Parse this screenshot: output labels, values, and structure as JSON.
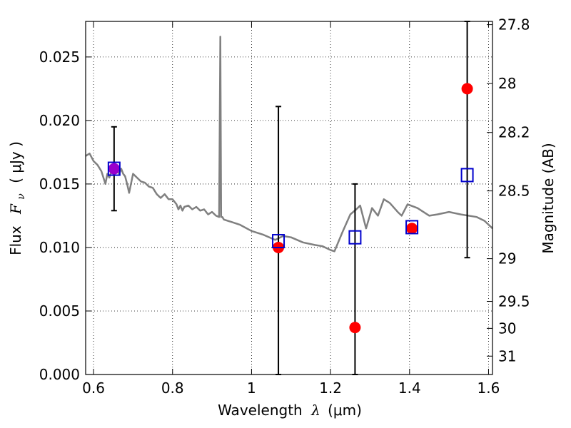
{
  "chart_data": {
    "type": "scatter",
    "xlabel_prefix": "Wavelength",
    "xlabel_symbol": "λ",
    "xlabel_unit": "(μm)",
    "ylabel_prefix": "Flux",
    "ylabel_symbol": "F",
    "ylabel_sub": "ν",
    "ylabel_unit": "( μJy )",
    "y2label": "Magnitude (AB)",
    "xlim": [
      0.58,
      1.61
    ],
    "ylim": [
      0.0,
      0.0278
    ],
    "grid": true,
    "x_ticks": [
      0.6,
      0.8,
      1.0,
      1.2,
      1.4,
      1.6
    ],
    "x_tick_labels": [
      "0.6",
      "0.8",
      "1",
      "1.2",
      "1.4",
      "1.6"
    ],
    "y_ticks": [
      0.0,
      0.005,
      0.01,
      0.015,
      0.02,
      0.025
    ],
    "y_tick_labels": [
      "0.000",
      "0.005",
      "0.010",
      "0.015",
      "0.020",
      "0.025"
    ],
    "y2_ticks": [
      27.8,
      28,
      28.2,
      28.5,
      29,
      29.5,
      30,
      31
    ],
    "y2_tick_labels": [
      "27.8",
      "28",
      "28.2",
      "28.5",
      "29",
      "29.5",
      "30",
      "31"
    ],
    "colors": {
      "model": "#808080",
      "observed": "#ff0000",
      "model_photometry": "#0000cc",
      "errorbar": "#000000",
      "overlap": "#9900cc"
    },
    "model_spectrum": {
      "x": [
        0.58,
        0.59,
        0.6,
        0.61,
        0.62,
        0.63,
        0.635,
        0.64,
        0.645,
        0.65,
        0.655,
        0.66,
        0.665,
        0.67,
        0.675,
        0.68,
        0.685,
        0.69,
        0.7,
        0.71,
        0.72,
        0.73,
        0.74,
        0.75,
        0.76,
        0.77,
        0.78,
        0.79,
        0.8,
        0.81,
        0.815,
        0.82,
        0.825,
        0.83,
        0.84,
        0.85,
        0.86,
        0.87,
        0.88,
        0.89,
        0.9,
        0.91,
        0.918,
        0.921,
        0.923,
        0.926,
        0.93,
        0.94,
        0.95,
        0.97,
        1.0,
        1.03,
        1.06,
        1.08,
        1.1,
        1.13,
        1.16,
        1.18,
        1.2,
        1.21,
        1.23,
        1.25,
        1.265,
        1.275,
        1.29,
        1.305,
        1.32,
        1.335,
        1.35,
        1.37,
        1.38,
        1.395,
        1.42,
        1.45,
        1.47,
        1.5,
        1.53,
        1.57,
        1.59,
        1.61
      ],
      "y": [
        0.0172,
        0.0174,
        0.0168,
        0.0165,
        0.016,
        0.015,
        0.0158,
        0.0155,
        0.016,
        0.0162,
        0.0163,
        0.016,
        0.0158,
        0.0162,
        0.0158,
        0.0156,
        0.015,
        0.0143,
        0.0158,
        0.0155,
        0.0152,
        0.0151,
        0.0148,
        0.0147,
        0.0142,
        0.0139,
        0.0142,
        0.0138,
        0.0138,
        0.0134,
        0.013,
        0.0133,
        0.0129,
        0.0132,
        0.0133,
        0.013,
        0.0132,
        0.0129,
        0.013,
        0.0126,
        0.0128,
        0.0125,
        0.0124,
        0.0266,
        0.0124,
        0.0124,
        0.0122,
        0.0121,
        0.012,
        0.0118,
        0.0113,
        0.011,
        0.0106,
        0.0109,
        0.0108,
        0.0104,
        0.0102,
        0.0101,
        0.0098,
        0.0097,
        0.0112,
        0.0126,
        0.013,
        0.0133,
        0.0115,
        0.0131,
        0.0125,
        0.0138,
        0.0135,
        0.0128,
        0.0125,
        0.0134,
        0.0131,
        0.0125,
        0.0126,
        0.0128,
        0.0126,
        0.0124,
        0.0121,
        0.0115
      ]
    },
    "observed_points": {
      "x": [
        0.652,
        1.068,
        1.262,
        1.406,
        1.546
      ],
      "y": [
        0.0162,
        0.01,
        0.0037,
        0.0115,
        0.0225
      ]
    },
    "model_photometry_points": {
      "x": [
        0.652,
        1.068,
        1.262,
        1.406,
        1.546
      ],
      "y": [
        0.0162,
        0.0105,
        0.0108,
        0.0116,
        0.0157
      ]
    },
    "error_bars": {
      "x": [
        0.652,
        1.068,
        1.262,
        1.546
      ],
      "low": [
        0.0129,
        0.0,
        0.0,
        0.0092
      ],
      "high": [
        0.0195,
        0.0211,
        0.015,
        0.0278
      ]
    }
  }
}
